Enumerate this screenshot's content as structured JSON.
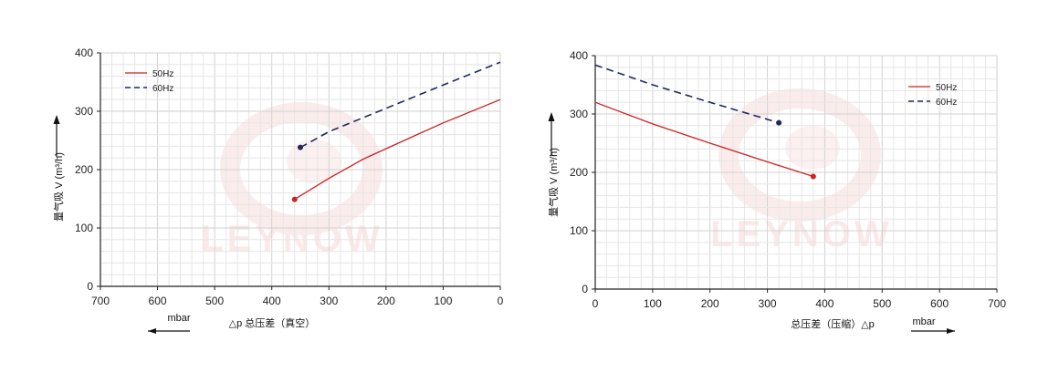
{
  "watermark": {
    "text": "LEYNOW",
    "color": "#f7d5d5"
  },
  "colors": {
    "hz50": "#cc2222",
    "hz60": "#1f2a5c",
    "grid_minor": "#e6e6e6",
    "grid_major": "#d2d2d2",
    "axis": "#222222"
  },
  "chart_data": [
    {
      "type": "line",
      "title": "",
      "ylabel": "量气吸 V (m³/h)",
      "xlabel": "△p 总压差（真空）",
      "x_unit": "mbar",
      "x_reversed": true,
      "xlim": [
        0,
        700
      ],
      "ylim": [
        0,
        400
      ],
      "x_ticks": [
        "700",
        "600",
        "500",
        "400",
        "300",
        "200",
        "100",
        "0"
      ],
      "y_ticks": [
        "0",
        "100",
        "200",
        "300",
        "400"
      ],
      "grid": true,
      "legend_position": "top-left",
      "series": [
        {
          "name": "50Hz",
          "style": "solid",
          "x": [
            360,
            300,
            240,
            150,
            100,
            0
          ],
          "y": [
            149,
            185,
            218,
            258,
            280,
            320
          ]
        },
        {
          "name": "60Hz",
          "style": "dashed",
          "x": [
            350,
            300,
            200,
            100,
            0
          ],
          "y": [
            238,
            265,
            305,
            345,
            384
          ]
        }
      ]
    },
    {
      "type": "line",
      "title": "",
      "ylabel": "量气吸 V (m³/h)",
      "xlabel": "总压差（压缩）△p",
      "x_unit": "mbar",
      "x_reversed": false,
      "xlim": [
        0,
        700
      ],
      "ylim": [
        0,
        400
      ],
      "x_ticks": [
        "0",
        "100",
        "200",
        "300",
        "400",
        "500",
        "600",
        "700"
      ],
      "y_ticks": [
        "0",
        "100",
        "200",
        "300",
        "400"
      ],
      "grid": true,
      "legend_position": "top-right",
      "series": [
        {
          "name": "50Hz",
          "style": "solid",
          "x": [
            0,
            100,
            200,
            300,
            380
          ],
          "y": [
            320,
            283,
            250,
            218,
            193
          ]
        },
        {
          "name": "60Hz",
          "style": "dashed",
          "x": [
            0,
            100,
            200,
            320
          ],
          "y": [
            384,
            350,
            320,
            285
          ]
        }
      ]
    }
  ]
}
